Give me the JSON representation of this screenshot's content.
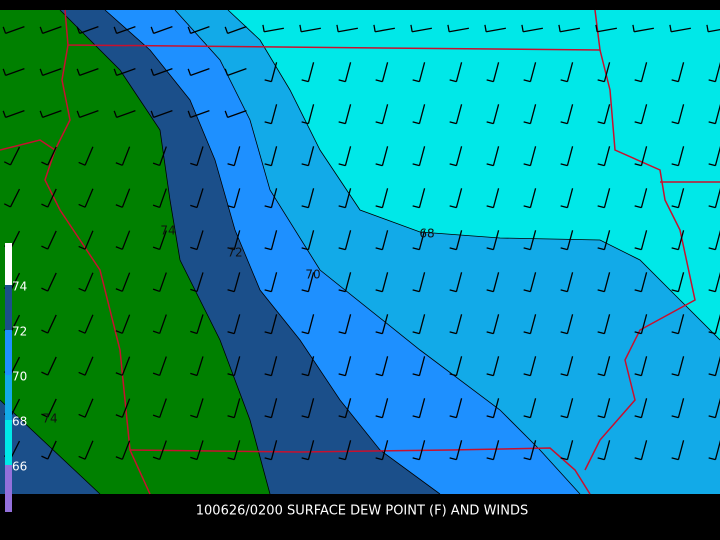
{
  "map": {
    "caption": "100626/0200 SURFACE DEW POINT (F) AND WINDS",
    "contour_labels": [
      74,
      72,
      70,
      68,
      74
    ],
    "colorbar_labels": [
      74,
      72,
      70,
      68,
      66
    ]
  }
}
